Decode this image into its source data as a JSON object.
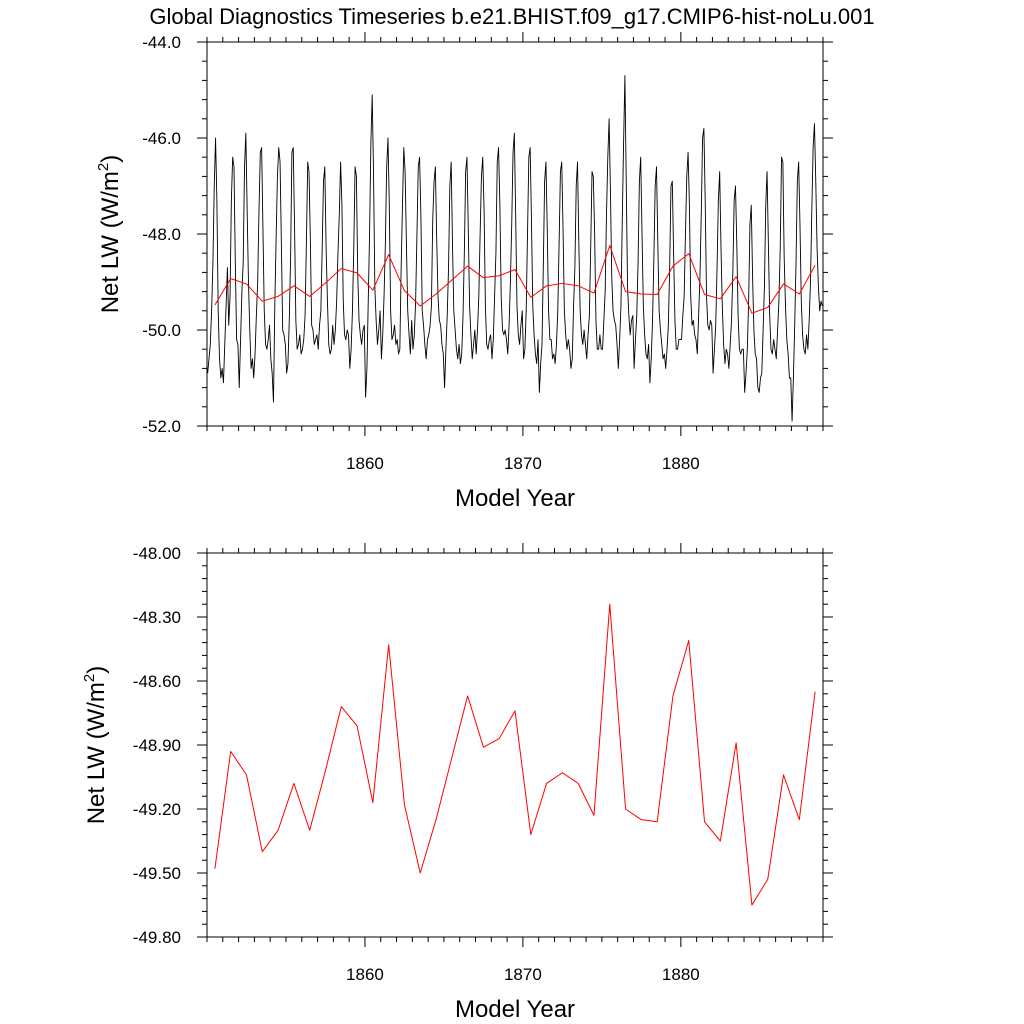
{
  "figure": {
    "title": "Global Diagnostics Timeseries b.e21.BHIST.f09_g17.CMIP6-hist-noLu.001"
  },
  "chart_data": [
    {
      "type": "line",
      "xlabel": "Model Year",
      "ylabel": "Net LW (W/m",
      "ylabel_sup": "2",
      "ylabel_close": ")",
      "xlim": [
        1850,
        1889
      ],
      "ylim": [
        -52.0,
        -44.0
      ],
      "xticks": [
        1860,
        1870,
        1880
      ],
      "xtick_labels": [
        "1860",
        "1870",
        "1880"
      ],
      "yticks": [
        -52.0,
        -50.0,
        -48.0,
        -46.0,
        -44.0
      ],
      "ytick_labels": [
        "-52.0",
        "-50.0",
        "-48.0",
        "-46.0",
        "-44.0"
      ],
      "series": [
        {
          "name": "monthly",
          "color": "#000000",
          "years_start": 1850.042,
          "step": 0.0833333,
          "values": [
            -50.9,
            -50.6,
            -50.3,
            -49.6,
            -48.6,
            -47.0,
            -46.0,
            -47.3,
            -49.6,
            -50.6,
            -51.0,
            -50.8,
            -51.1,
            -50.3,
            -49.5,
            -48.7,
            -49.9,
            -49.3,
            -47.3,
            -46.4,
            -46.6,
            -48.6,
            -50.2,
            -50.3,
            -51.2,
            -50.2,
            -49.2,
            -48.6,
            -46.6,
            -45.9,
            -47.5,
            -49.0,
            -50.0,
            -50.8,
            -50.6,
            -51.0,
            -50.5,
            -49.7,
            -49.0,
            -47.5,
            -46.3,
            -46.2,
            -47.9,
            -49.6,
            -50.3,
            -50.4,
            -50.2,
            -49.9,
            -50.6,
            -50.9,
            -51.5,
            -49.5,
            -48.1,
            -46.8,
            -46.2,
            -46.5,
            -48.2,
            -50.0,
            -50.1,
            -50.3,
            -50.9,
            -50.7,
            -49.8,
            -48.5,
            -46.3,
            -46.2,
            -47.8,
            -49.8,
            -50.4,
            -50.3,
            -50.1,
            -50.5,
            -50.4,
            -50.2,
            -49.7,
            -48.2,
            -46.5,
            -46.7,
            -48.1,
            -49.9,
            -50.0,
            -50.3,
            -50.2,
            -50.1,
            -50.4,
            -49.9,
            -49.6,
            -48.3,
            -46.9,
            -46.6,
            -48.3,
            -49.4,
            -50.3,
            -50.5,
            -50.4,
            -49.9,
            -50.3,
            -50.0,
            -49.4,
            -48.4,
            -47.6,
            -46.5,
            -47.4,
            -49.4,
            -50.1,
            -50.2,
            -50.0,
            -50.1,
            -50.8,
            -50.4,
            -49.6,
            -48.3,
            -46.6,
            -46.8,
            -48.8,
            -49.8,
            -50.1,
            -50.3,
            -50.0,
            -49.9,
            -51.4,
            -50.8,
            -49.4,
            -48.0,
            -46.1,
            -45.1,
            -46.7,
            -49.1,
            -49.8,
            -50.3,
            -50.0,
            -49.6,
            -50.6,
            -50.1,
            -49.3,
            -48.2,
            -46.6,
            -46.0,
            -47.4,
            -49.6,
            -50.2,
            -50.1,
            -49.9,
            -50.3,
            -50.2,
            -50.5,
            -50.4,
            -48.7,
            -47.4,
            -46.2,
            -46.7,
            -48.2,
            -49.6,
            -50.1,
            -50.5,
            -49.8,
            -50.4,
            -50.1,
            -49.4,
            -48.0,
            -46.6,
            -46.4,
            -47.6,
            -49.6,
            -49.9,
            -50.3,
            -50.6,
            -50.2,
            -50.1,
            -49.9,
            -49.5,
            -47.7,
            -46.9,
            -46.6,
            -48.1,
            -49.3,
            -49.8,
            -49.9,
            -50.3,
            -50.5,
            -51.2,
            -50.4,
            -49.7,
            -48.7,
            -47.0,
            -46.5,
            -48.2,
            -49.6,
            -50.0,
            -50.4,
            -50.6,
            -50.3,
            -50.7,
            -50.5,
            -49.7,
            -48.4,
            -46.7,
            -46.4,
            -47.9,
            -49.5,
            -50.1,
            -50.6,
            -50.3,
            -50.0,
            -50.5,
            -50.0,
            -49.3,
            -48.0,
            -46.8,
            -46.4,
            -47.5,
            -49.5,
            -50.3,
            -50.4,
            -50.2,
            -50.1,
            -50.6,
            -50.2,
            -49.3,
            -48.4,
            -46.5,
            -46.2,
            -47.4,
            -49.3,
            -50.0,
            -50.1,
            -50.0,
            -50.2,
            -50.5,
            -49.9,
            -49.0,
            -47.8,
            -46.3,
            -45.9,
            -47.6,
            -49.5,
            -50.1,
            -50.3,
            -49.9,
            -49.6,
            -50.6,
            -50.4,
            -49.6,
            -48.0,
            -46.4,
            -46.2,
            -47.7,
            -49.5,
            -50.1,
            -50.5,
            -50.7,
            -50.2,
            -51.3,
            -50.7,
            -50.3,
            -48.7,
            -46.9,
            -46.5,
            -47.9,
            -49.6,
            -50.2,
            -50.2,
            -50.6,
            -50.5,
            -50.7,
            -50.3,
            -49.6,
            -48.2,
            -46.7,
            -46.5,
            -47.9,
            -49.6,
            -50.1,
            -50.4,
            -50.2,
            -50.4,
            -50.8,
            -50.6,
            -49.5,
            -48.7,
            -47.0,
            -46.5,
            -48.2,
            -49.6,
            -50.1,
            -50.3,
            -50.0,
            -50.3,
            -50.6,
            -50.1,
            -49.7,
            -48.3,
            -46.7,
            -46.8,
            -48.0,
            -49.8,
            -50.4,
            -50.4,
            -50.1,
            -50.4,
            -50.4,
            -49.8,
            -49.2,
            -47.6,
            -46.4,
            -45.6,
            -47.1,
            -48.9,
            -49.6,
            -49.8,
            -49.9,
            -50.3,
            -50.8,
            -50.2,
            -49.5,
            -47.7,
            -46.1,
            -44.7,
            -46.9,
            -49.1,
            -49.7,
            -50.1,
            -49.8,
            -49.7,
            -50.8,
            -50.2,
            -49.7,
            -48.6,
            -46.9,
            -46.4,
            -48.0,
            -49.5,
            -50.1,
            -50.5,
            -50.6,
            -50.3,
            -51.1,
            -50.6,
            -49.8,
            -48.5,
            -47.0,
            -46.6,
            -48.2,
            -49.6,
            -50.0,
            -50.3,
            -50.6,
            -50.5,
            -50.8,
            -50.4,
            -49.9,
            -48.7,
            -47.0,
            -46.9,
            -48.4,
            -49.8,
            -50.4,
            -50.4,
            -50.2,
            -50.2,
            -50.2,
            -49.7,
            -49.3,
            -48.0,
            -46.8,
            -46.3,
            -47.4,
            -49.3,
            -49.9,
            -49.8,
            -50.1,
            -50.2,
            -50.5,
            -49.7,
            -48.9,
            -47.6,
            -46.0,
            -45.8,
            -47.3,
            -49.3,
            -49.9,
            -50.0,
            -49.8,
            -49.9,
            -50.9,
            -50.4,
            -49.9,
            -48.7,
            -47.3,
            -46.7,
            -48.3,
            -49.5,
            -50.3,
            -50.7,
            -50.4,
            -50.5,
            -50.8,
            -50.3,
            -49.8,
            -48.8,
            -47.3,
            -47.0,
            -48.2,
            -49.7,
            -50.4,
            -50.5,
            -50.4,
            -50.4,
            -51.3,
            -50.9,
            -50.4,
            -49.4,
            -47.8,
            -47.4,
            -48.9,
            -50.0,
            -50.5,
            -50.6,
            -51.2,
            -51.3,
            -51.0,
            -50.9,
            -50.0,
            -49.1,
            -47.4,
            -46.7,
            -48.2,
            -49.7,
            -50.4,
            -50.5,
            -50.2,
            -50.4,
            -50.6,
            -50.0,
            -49.4,
            -48.3,
            -46.4,
            -46.5,
            -48.5,
            -49.5,
            -50.2,
            -50.5,
            -51.0,
            -51.0,
            -51.9,
            -51.0,
            -49.9,
            -48.6,
            -46.9,
            -46.5,
            -47.8,
            -49.4,
            -50.1,
            -50.4,
            -50.5,
            -50.1,
            -50.4,
            -49.8,
            -49.0,
            -47.5,
            -46.2,
            -45.7,
            -46.9,
            -48.3,
            -49.1,
            -49.6,
            -49.4,
            -49.5
          ]
        },
        {
          "name": "annual",
          "color": "#ff0000",
          "x": [
            1850.5,
            1851.5,
            1852.5,
            1853.5,
            1854.5,
            1855.5,
            1856.5,
            1857.5,
            1858.5,
            1859.5,
            1860.5,
            1861.5,
            1862.5,
            1863.5,
            1864.5,
            1865.5,
            1866.5,
            1867.5,
            1868.5,
            1869.5,
            1870.5,
            1871.5,
            1872.5,
            1873.5,
            1874.5,
            1875.5,
            1876.5,
            1877.5,
            1878.5,
            1879.5,
            1880.5,
            1881.5,
            1882.5,
            1883.5,
            1884.5,
            1885.5,
            1886.5,
            1887.5,
            1888.5
          ],
          "values": [
            -49.48,
            -48.93,
            -49.04,
            -49.4,
            -49.3,
            -49.08,
            -49.3,
            -49.02,
            -48.72,
            -48.81,
            -49.17,
            -48.43,
            -49.18,
            -49.5,
            -49.25,
            -48.96,
            -48.67,
            -48.91,
            -48.87,
            -48.74,
            -49.32,
            -49.08,
            -49.03,
            -49.08,
            -49.23,
            -48.24,
            -49.2,
            -49.25,
            -49.26,
            -48.67,
            -48.41,
            -49.26,
            -49.35,
            -48.89,
            -49.65,
            -49.53,
            -49.04,
            -49.25,
            -48.65
          ]
        }
      ]
    },
    {
      "type": "line",
      "xlabel": "Model Year",
      "ylabel": "Net LW (W/m",
      "ylabel_sup": "2",
      "ylabel_close": ")",
      "xlim": [
        1850,
        1889
      ],
      "ylim": [
        -49.8,
        -48.0
      ],
      "xticks": [
        1860,
        1870,
        1880
      ],
      "xtick_labels": [
        "1860",
        "1870",
        "1880"
      ],
      "yticks": [
        -49.8,
        -49.5,
        -49.2,
        -48.9,
        -48.6,
        -48.3,
        -48.0
      ],
      "ytick_labels": [
        "-49.80",
        "-49.50",
        "-49.20",
        "-48.90",
        "-48.60",
        "-48.30",
        "-48.00"
      ],
      "series": [
        {
          "name": "annual",
          "color": "#ff0000",
          "x": [
            1850.5,
            1851.5,
            1852.5,
            1853.5,
            1854.5,
            1855.5,
            1856.5,
            1857.5,
            1858.5,
            1859.5,
            1860.5,
            1861.5,
            1862.5,
            1863.5,
            1864.5,
            1865.5,
            1866.5,
            1867.5,
            1868.5,
            1869.5,
            1870.5,
            1871.5,
            1872.5,
            1873.5,
            1874.5,
            1875.5,
            1876.5,
            1877.5,
            1878.5,
            1879.5,
            1880.5,
            1881.5,
            1882.5,
            1883.5,
            1884.5,
            1885.5,
            1886.5,
            1887.5,
            1888.5
          ],
          "values": [
            -49.48,
            -48.93,
            -49.04,
            -49.4,
            -49.3,
            -49.08,
            -49.3,
            -49.02,
            -48.72,
            -48.81,
            -49.17,
            -48.43,
            -49.18,
            -49.5,
            -49.25,
            -48.96,
            -48.67,
            -48.91,
            -48.87,
            -48.74,
            -49.32,
            -49.08,
            -49.03,
            -49.08,
            -49.23,
            -48.24,
            -49.2,
            -49.25,
            -49.26,
            -48.67,
            -48.41,
            -49.26,
            -49.35,
            -48.89,
            -49.65,
            -49.53,
            -49.04,
            -49.25,
            -48.65
          ]
        }
      ]
    }
  ]
}
